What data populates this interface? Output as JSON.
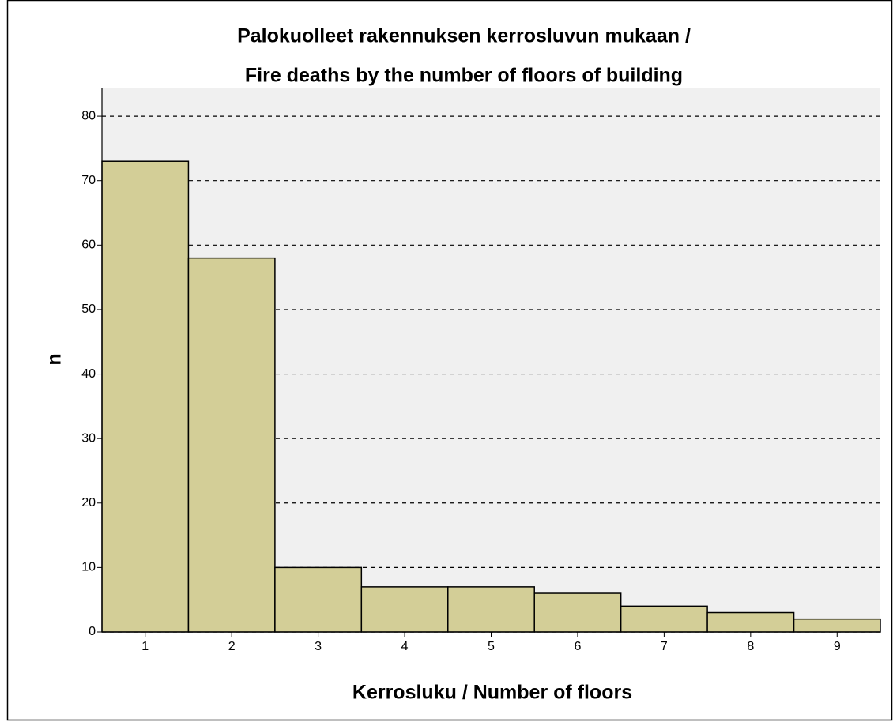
{
  "chart_data": {
    "type": "bar",
    "title": [
      "Palokuolleet rakennuksen kerrosluvun mukaan /",
      "Fire deaths by the number of floors of building"
    ],
    "x_label": "Kerrosluku / Number of floors",
    "y_label": "n",
    "categories": [
      "1",
      "2",
      "3",
      "4",
      "5",
      "6",
      "7",
      "8",
      "9"
    ],
    "values": [
      73,
      58,
      10,
      7,
      7,
      6,
      4,
      3,
      2
    ],
    "color": "#d3ce97",
    "ylim": [
      0,
      84.3
    ],
    "yticks": [
      0,
      10,
      20,
      30,
      40,
      50,
      60,
      70,
      80
    ],
    "grid": true
  }
}
